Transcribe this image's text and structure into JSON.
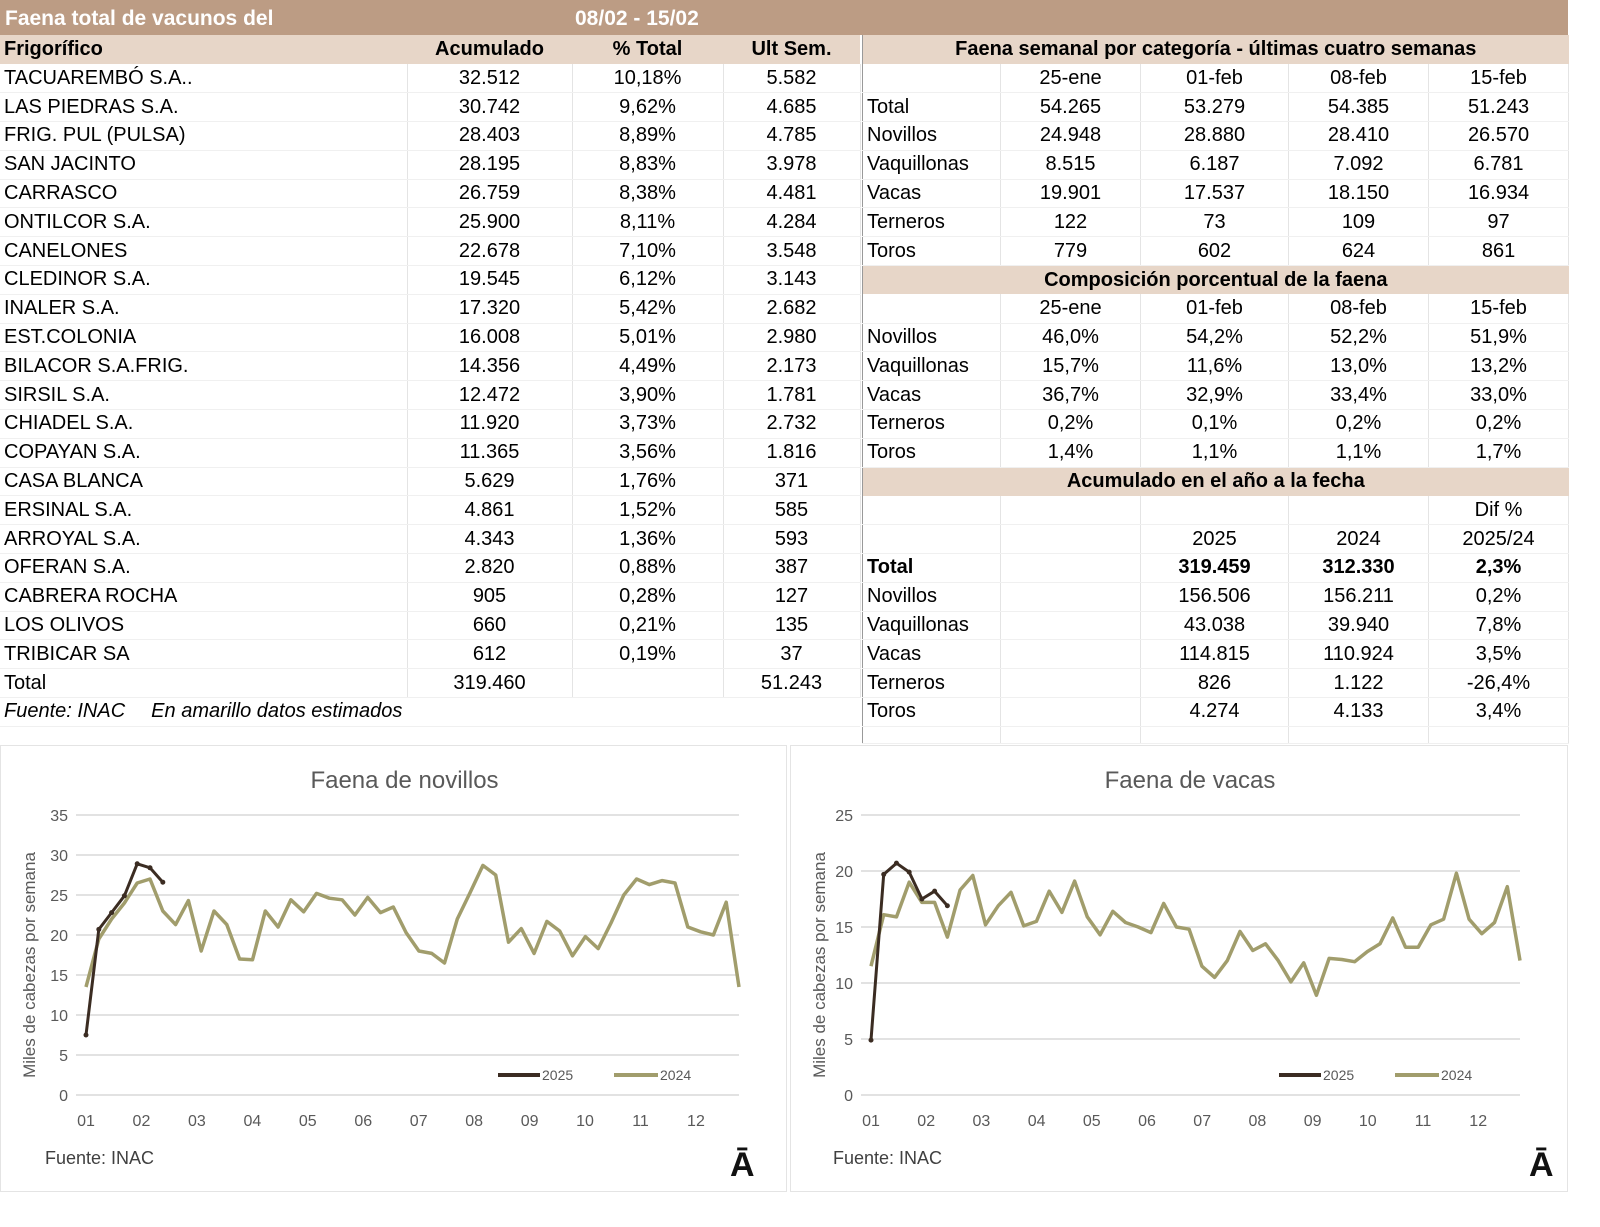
{
  "title": {
    "text": "Faena total de vacunos del",
    "period": "08/02 - 15/02"
  },
  "left": {
    "headers": [
      "Frigorífico",
      "Acumulado",
      "% Total",
      "Ult Sem."
    ],
    "rows": [
      [
        "TACUAREMBÓ S.A..",
        "32.512",
        "10,18%",
        "5.582"
      ],
      [
        "LAS PIEDRAS S.A.",
        "30.742",
        "9,62%",
        "4.685"
      ],
      [
        "FRIG. PUL (PULSA)",
        "28.403",
        "8,89%",
        "4.785"
      ],
      [
        "SAN JACINTO",
        "28.195",
        "8,83%",
        "3.978"
      ],
      [
        "CARRASCO",
        "26.759",
        "8,38%",
        "4.481"
      ],
      [
        "ONTILCOR S.A.",
        "25.900",
        "8,11%",
        "4.284"
      ],
      [
        "CANELONES",
        "22.678",
        "7,10%",
        "3.548"
      ],
      [
        "CLEDINOR S.A.",
        "19.545",
        "6,12%",
        "3.143"
      ],
      [
        "INALER S.A.",
        "17.320",
        "5,42%",
        "2.682"
      ],
      [
        "EST.COLONIA",
        "16.008",
        "5,01%",
        "2.980"
      ],
      [
        "BILACOR S.A.FRIG.",
        "14.356",
        "4,49%",
        "2.173"
      ],
      [
        "SIRSIL S.A.",
        "12.472",
        "3,90%",
        "1.781"
      ],
      [
        "CHIADEL S.A.",
        "11.920",
        "3,73%",
        "2.732"
      ],
      [
        "COPAYAN S.A.",
        "11.365",
        "3,56%",
        "1.816"
      ],
      [
        "CASA BLANCA",
        "5.629",
        "1,76%",
        "371"
      ],
      [
        "ERSINAL S.A.",
        "4.861",
        "1,52%",
        "585"
      ],
      [
        "ARROYAL S.A.",
        "4.343",
        "1,36%",
        "593"
      ],
      [
        "OFERAN S.A.",
        "2.820",
        "0,88%",
        "387"
      ],
      [
        "CABRERA ROCHA",
        "905",
        "0,28%",
        "127"
      ],
      [
        "LOS OLIVOS",
        "660",
        "0,21%",
        "135"
      ],
      [
        "TRIBICAR SA",
        "612",
        "0,19%",
        "37"
      ],
      [
        "Total",
        "319.460",
        "",
        "51.243"
      ]
    ],
    "source": "Fuente: INAC",
    "note": "En amarillo datos estimados"
  },
  "weekly": {
    "title": "Faena semanal por categoría - últimas cuatro semanas",
    "dates": [
      "25-ene",
      "01-feb",
      "08-feb",
      "15-feb"
    ],
    "rows": [
      [
        "Total",
        "54.265",
        "53.279",
        "54.385",
        "51.243"
      ],
      [
        "Novillos",
        "24.948",
        "28.880",
        "28.410",
        "26.570"
      ],
      [
        "Vaquillonas",
        "8.515",
        "6.187",
        "7.092",
        "6.781"
      ],
      [
        "Vacas",
        "19.901",
        "17.537",
        "18.150",
        "16.934"
      ],
      [
        "Terneros",
        "122",
        "73",
        "109",
        "97"
      ],
      [
        "Toros",
        "779",
        "602",
        "624",
        "861"
      ]
    ]
  },
  "composition": {
    "title": "Composición porcentual de la faena",
    "dates": [
      "25-ene",
      "01-feb",
      "08-feb",
      "15-feb"
    ],
    "rows": [
      [
        "Novillos",
        "46,0%",
        "54,2%",
        "52,2%",
        "51,9%"
      ],
      [
        "Vaquillonas",
        "15,7%",
        "11,6%",
        "13,0%",
        "13,2%"
      ],
      [
        "Vacas",
        "36,7%",
        "32,9%",
        "33,4%",
        "33,0%"
      ],
      [
        "Terneros",
        "0,2%",
        "0,1%",
        "0,2%",
        "0,2%"
      ],
      [
        "Toros",
        "1,4%",
        "1,1%",
        "1,1%",
        "1,7%"
      ]
    ]
  },
  "accum": {
    "title": "Acumulado en el año a la fecha",
    "dif_label": "Dif %",
    "years": [
      "2025",
      "2024",
      "2025/24"
    ],
    "rows": [
      [
        "Total",
        "319.459",
        "312.330",
        "2,3%"
      ],
      [
        "Novillos",
        "156.506",
        "156.211",
        "0,2%"
      ],
      [
        "Vaquillonas",
        "43.038",
        "39.940",
        "7,8%"
      ],
      [
        "Vacas",
        "114.815",
        "110.924",
        "3,5%"
      ],
      [
        "Terneros",
        "826",
        "1.122",
        "-26,4%"
      ],
      [
        "Toros",
        "4.274",
        "4.133",
        "3,4%"
      ]
    ]
  },
  "chart_data": [
    {
      "type": "line",
      "title": "Faena de novillos",
      "ylabel": "Miles de cabezas por semana",
      "ylim": [
        0,
        35
      ],
      "yticks": [
        0,
        5,
        10,
        15,
        20,
        25,
        30,
        35
      ],
      "xticks": [
        "01",
        "02",
        "03",
        "04",
        "05",
        "06",
        "07",
        "08",
        "09",
        "10",
        "11",
        "12"
      ],
      "source": "Fuente: INAC",
      "logo": "Ā",
      "legend": "bottom-right",
      "series": [
        {
          "name": "2025",
          "color": "#3b2c22",
          "values": [
            7.5,
            20.7,
            22.8,
            24.9,
            28.9,
            28.4,
            26.6
          ]
        },
        {
          "name": "2024",
          "color": "#a19d6c",
          "values": [
            13.5,
            19.5,
            22,
            24,
            26.5,
            27,
            23,
            21.3,
            24.3,
            18,
            23,
            21.3,
            17,
            16.9,
            23,
            21,
            24.4,
            22.9,
            25.2,
            24.6,
            24.4,
            22.5,
            24.7,
            22.8,
            23.5,
            20.3,
            18,
            17.7,
            16.5,
            22,
            25.3,
            28.7,
            27.5,
            19.1,
            20.8,
            17.7,
            21.7,
            20.5,
            17.4,
            19.8,
            18.3,
            21.5,
            25,
            27,
            26.3,
            26.8,
            26.5,
            21,
            20.4,
            20,
            24.1,
            13.5
          ]
        }
      ]
    },
    {
      "type": "line",
      "title": "Faena de vacas",
      "ylabel": "Miles de cabezas por semana",
      "ylim": [
        0,
        25
      ],
      "yticks": [
        0,
        5,
        10,
        15,
        20,
        25
      ],
      "xticks": [
        "01",
        "02",
        "03",
        "04",
        "05",
        "06",
        "07",
        "08",
        "09",
        "10",
        "11",
        "12"
      ],
      "source": "Fuente: INAC",
      "logo": "Ā",
      "legend": "bottom-right",
      "series": [
        {
          "name": "2025",
          "color": "#3b2c22",
          "values": [
            4.9,
            19.7,
            20.7,
            19.9,
            17.5,
            18.2,
            16.9
          ]
        },
        {
          "name": "2024",
          "color": "#a19d6c",
          "values": [
            11.5,
            16.1,
            15.9,
            19,
            17.2,
            17.2,
            14.1,
            18.3,
            19.6,
            15.2,
            16.9,
            18.1,
            15.1,
            15.5,
            18.2,
            16.3,
            19.1,
            15.9,
            14.3,
            16.4,
            15.4,
            15,
            14.5,
            17.1,
            15,
            14.8,
            11.5,
            10.5,
            12,
            14.6,
            12.9,
            13.5,
            12,
            10.1,
            11.8,
            8.9,
            12.2,
            12.1,
            11.9,
            12.8,
            13.5,
            15.8,
            13.2,
            13.2,
            15.2,
            15.7,
            19.8,
            15.7,
            14.4,
            15.4,
            18.6,
            12
          ]
        }
      ]
    }
  ]
}
